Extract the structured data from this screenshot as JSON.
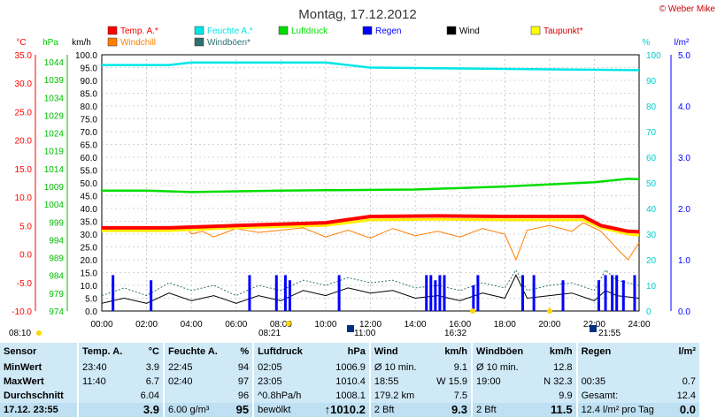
{
  "title": "Montag, 17.12.2012",
  "copyright": "© Weber Mike",
  "legend": [
    {
      "label": "Temp. A.*",
      "color": "#ff0000"
    },
    {
      "label": "Feuchte A.*",
      "color": "#00e6e6"
    },
    {
      "label": "Luftdruck",
      "color": "#00dd00"
    },
    {
      "label": "Regen",
      "color": "#0000ff"
    },
    {
      "label": "Wind",
      "color": "#000000"
    },
    {
      "label": "Taupunkt*",
      "color": "#ffff00"
    },
    {
      "label": "Windchill",
      "color": "#ff7f00"
    },
    {
      "label": "Windböen*",
      "color": "#2f6f6f"
    }
  ],
  "axes": {
    "temp_unit": "°C",
    "pressure_unit": "hPa",
    "wind_unit": "km/h",
    "humidity_unit": "%",
    "rain_unit": "l/m²",
    "temp_ticks": [
      "35.0",
      "30.0",
      "25.0",
      "20.0",
      "15.0",
      "10.0",
      "5.0",
      "0.0",
      "-5.0",
      "-10.0"
    ],
    "pressure_ticks": [
      "1044",
      "1039",
      "1034",
      "1029",
      "1024",
      "1019",
      "1014",
      "1009",
      "1004",
      "999",
      "994",
      "989",
      "984",
      "979",
      "974"
    ],
    "wind_ticks": [
      "100.0",
      "95.0",
      "90.0",
      "85.0",
      "80.0",
      "75.0",
      "70.0",
      "65.0",
      "60.0",
      "55.0",
      "50.0",
      "45.0",
      "40.0",
      "35.0",
      "30.0",
      "25.0",
      "20.0",
      "15.0",
      "10.0",
      "5.0",
      "0.0"
    ],
    "humidity_ticks": [
      "100",
      "90",
      "80",
      "70",
      "60",
      "50",
      "40",
      "30",
      "20",
      "10",
      "0"
    ],
    "rain_ticks": [
      "5.0",
      "4.0",
      "3.0",
      "2.0",
      "1.0",
      "0.0"
    ],
    "time_ticks": [
      "00:00",
      "02:00",
      "04:00",
      "06:00",
      "08:00",
      "10:00",
      "12:00",
      "14:00",
      "16:00",
      "18:00",
      "20:00",
      "22:00",
      "24:00"
    ],
    "sun_labels": [
      "08:10",
      "08:21",
      "11:00",
      "16:32",
      "21:55"
    ]
  },
  "chart_data": {
    "type": "line",
    "title": "Montag, 17.12.2012",
    "x_unit": "hours",
    "xlim": [
      0,
      24
    ],
    "series": [
      {
        "name": "Feuchte A.*",
        "axis": "humidity",
        "x": [
          0,
          3,
          4,
          10,
          12,
          24
        ],
        "values": [
          96,
          96,
          97,
          97,
          95,
          94
        ]
      },
      {
        "name": "Luftdruck",
        "axis": "pressure",
        "x": [
          0,
          2,
          4,
          8,
          10,
          14,
          18,
          20,
          22,
          23.5,
          24
        ],
        "values": [
          1006.9,
          1006.9,
          1006.5,
          1006.9,
          1007.0,
          1007.2,
          1008.0,
          1008.6,
          1009.2,
          1010.1,
          1010.0
        ]
      },
      {
        "name": "Temp. A.*",
        "axis": "temp",
        "x": [
          0,
          3,
          6,
          10,
          12,
          15,
          18,
          21.5,
          22.3,
          23.5,
          24
        ],
        "values": [
          4.6,
          4.6,
          5.0,
          5.5,
          6.6,
          6.7,
          6.6,
          6.6,
          5.0,
          4.0,
          3.9
        ]
      },
      {
        "name": "Taupunkt*",
        "axis": "temp",
        "x": [
          0,
          3,
          6,
          10,
          12,
          15,
          18,
          21.5,
          22.3,
          23.5,
          24
        ],
        "values": [
          4.1,
          4.1,
          4.6,
          5.0,
          6.0,
          6.1,
          6.0,
          6.0,
          4.6,
          3.5,
          3.3
        ]
      },
      {
        "name": "Windchill",
        "axis": "temp",
        "x": [
          0,
          3.8,
          4.0,
          4.5,
          5,
          6,
          7,
          8,
          9,
          10,
          11,
          12,
          13,
          14,
          15,
          16,
          17,
          18,
          18.5,
          19,
          20,
          21,
          21.5,
          22.3,
          23,
          23.5,
          24
        ],
        "values": [
          4.6,
          4.6,
          3.5,
          4.0,
          3.0,
          4.5,
          3.8,
          4.2,
          4.6,
          3.0,
          4.2,
          2.8,
          4.5,
          3.2,
          4.0,
          3.0,
          4.5,
          3.5,
          -1.0,
          4.2,
          5.0,
          4.0,
          5.5,
          4.0,
          1.0,
          -1.0,
          2.0
        ]
      },
      {
        "name": "Wind",
        "axis": "wind",
        "x": [
          0,
          1,
          2,
          3,
          4,
          5,
          6,
          7,
          8,
          9,
          10,
          11,
          12,
          13,
          14,
          15,
          16,
          17,
          18,
          18.5,
          19,
          20,
          21,
          22,
          22.5,
          23,
          24
        ],
        "values": [
          3,
          5,
          3,
          7,
          4,
          6,
          3,
          6,
          4,
          8,
          6,
          9,
          7,
          8,
          5,
          6,
          4,
          7,
          5,
          14,
          5,
          6,
          7,
          4,
          8,
          6,
          5
        ]
      },
      {
        "name": "Windböen*",
        "axis": "wind",
        "x": [
          0,
          1,
          2,
          3,
          4,
          5,
          6,
          7,
          8,
          9,
          10,
          11,
          12,
          13,
          14,
          15,
          16,
          17,
          18,
          18.5,
          19,
          20,
          21,
          22,
          22.5,
          23,
          24
        ],
        "values": [
          6,
          9,
          6,
          11,
          8,
          10,
          6,
          10,
          8,
          12,
          10,
          13,
          11,
          12,
          9,
          10,
          8,
          11,
          9,
          16,
          8,
          10,
          11,
          8,
          16,
          12,
          10
        ]
      },
      {
        "name": "Regen",
        "axis": "rain",
        "type": "bar",
        "x": [
          0.5,
          2.2,
          6.6,
          7.8,
          8.2,
          8.4,
          10.6,
          14.5,
          14.7,
          14.9,
          15.1,
          15.3,
          16.6,
          16.8,
          18.8,
          19.3,
          20.6,
          22.2,
          22.5,
          22.8,
          23.0,
          23.3,
          23.8
        ],
        "values": [
          0.7,
          0.6,
          0.7,
          0.7,
          0.7,
          0.6,
          0.7,
          0.7,
          0.7,
          0.6,
          0.7,
          0.7,
          0.5,
          0.7,
          0.7,
          0.7,
          0.6,
          0.6,
          0.7,
          0.7,
          0.7,
          0.6,
          0.7
        ]
      }
    ]
  },
  "stats": {
    "headers": [
      "Sensor",
      "Temp. A.",
      "°C",
      "Feuchte A.",
      "%",
      "Luftdruck",
      "hPa",
      "Wind",
      "km/h",
      "Windböen",
      "km/h",
      "Regen",
      "l/m²"
    ],
    "rows": [
      {
        "label": "MinWert",
        "cells": [
          "23:40",
          "3.9",
          "22:45",
          "94",
          "02:05",
          "1006.9",
          "Ø 10 min.",
          "9.1",
          "Ø 10 min.",
          "12.8",
          "",
          ""
        ]
      },
      {
        "label": "MaxWert",
        "cells": [
          "11:40",
          "6.7",
          "02:40",
          "97",
          "23:05",
          "1010.4",
          "18:55",
          "W 15.9",
          "19:00",
          "N 32.3",
          "00:35",
          "0.7"
        ]
      },
      {
        "label": "Durchschnitt",
        "cells": [
          "",
          "6.04",
          "",
          "96",
          "^0.8hPa/h",
          "1008.1",
          "179.2 km",
          "7.5",
          "",
          "9.9",
          "Gesamt:",
          "12.4"
        ]
      },
      {
        "label": "17.12. 23:55",
        "cells": [
          "",
          "3.9",
          "6.00 g/m³",
          "95",
          "bewölkt",
          "↑1010.2",
          "2 Bft",
          "9.3",
          "2 Bft",
          "11.5",
          "12.4 l/m² pro Tag",
          "0.0"
        ]
      }
    ]
  }
}
